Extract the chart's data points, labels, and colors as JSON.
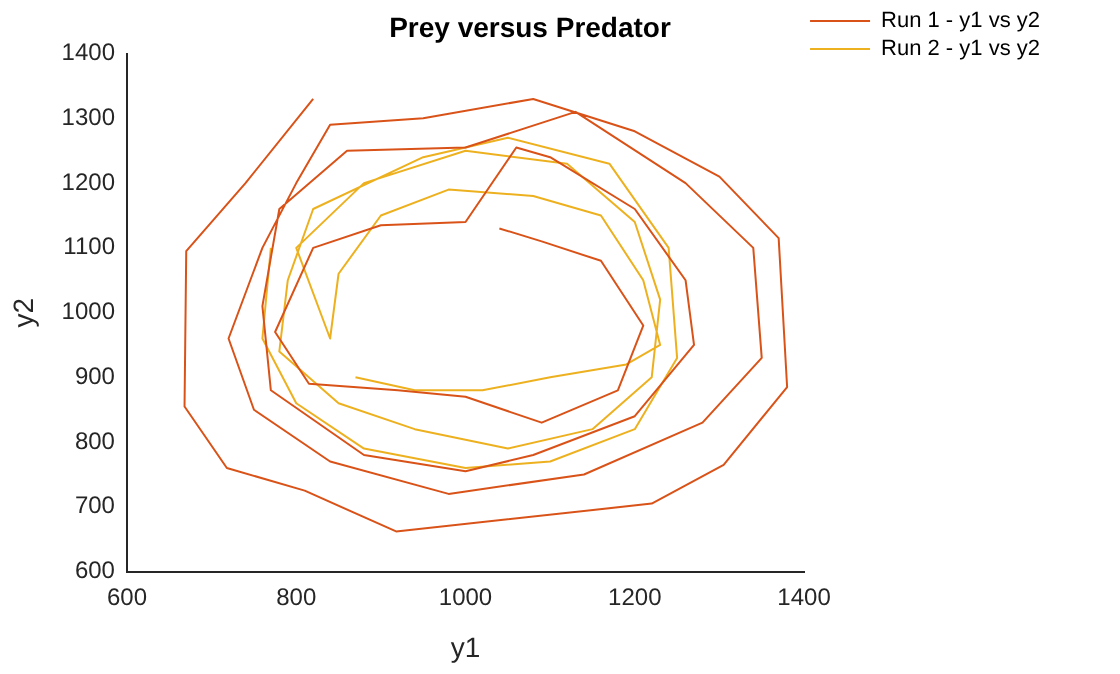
{
  "chart_data": {
    "type": "line",
    "title": "Prey versus Predator",
    "xlabel": "y1",
    "ylabel": "y2",
    "xlim": [
      600,
      1400
    ],
    "xticks": [
      600,
      800,
      1000,
      1200,
      1400
    ],
    "ylim": [
      600,
      1400
    ],
    "yticks": [
      600,
      700,
      800,
      900,
      1000,
      1100,
      1200,
      1300,
      1400
    ],
    "grid": false,
    "legend": "top right",
    "marker": "none",
    "line_style": "solid",
    "series": [
      {
        "name": "Run 1 - y1 vs y2",
        "color": "#d95319",
        "x": [
          1040,
          1090,
          1160,
          1210,
          1180,
          1090,
          1000,
          920,
          815,
          775,
          820,
          900,
          1000,
          1060,
          1100,
          1200,
          1260,
          1270,
          1200,
          1080,
          1000,
          880,
          770,
          760,
          780,
          860,
          1000,
          1130,
          1260,
          1340,
          1350,
          1280,
          1140,
          980,
          840,
          750,
          720,
          760,
          800,
          840,
          950,
          1080,
          1200,
          1300,
          1370,
          1380,
          1305,
          1220,
          918,
          810,
          718,
          668,
          670,
          740,
          820
        ],
        "values": [
          1130,
          1110,
          1080,
          980,
          880,
          830,
          870,
          880,
          890,
          970,
          1100,
          1135,
          1140,
          1255,
          1240,
          1160,
          1050,
          950,
          840,
          780,
          755,
          780,
          880,
          1010,
          1160,
          1250,
          1255,
          1310,
          1200,
          1100,
          930,
          830,
          750,
          720,
          770,
          850,
          960,
          1100,
          1200,
          1290,
          1300,
          1330,
          1280,
          1210,
          1115,
          885,
          765,
          705,
          662,
          725,
          760,
          855,
          1095,
          1200,
          1330
        ]
      },
      {
        "name": "Run 2 - y1 vs y2",
        "color": "#edb120",
        "x": [
          870,
          940,
          1020,
          1100,
          1190,
          1230,
          1210,
          1160,
          1080,
          980,
          900,
          850,
          840,
          800,
          880,
          1000,
          1120,
          1200,
          1230,
          1220,
          1150,
          1050,
          940,
          850,
          780,
          790,
          820,
          950,
          1050,
          1170,
          1240,
          1250,
          1200,
          1100,
          1000,
          880,
          800,
          760,
          770
        ],
        "values": [
          900,
          880,
          880,
          900,
          920,
          950,
          1050,
          1150,
          1180,
          1190,
          1150,
          1060,
          960,
          1100,
          1200,
          1250,
          1230,
          1140,
          1020,
          900,
          820,
          790,
          820,
          860,
          940,
          1050,
          1160,
          1240,
          1270,
          1230,
          1100,
          930,
          820,
          770,
          760,
          790,
          860,
          960,
          1100
        ]
      }
    ]
  }
}
